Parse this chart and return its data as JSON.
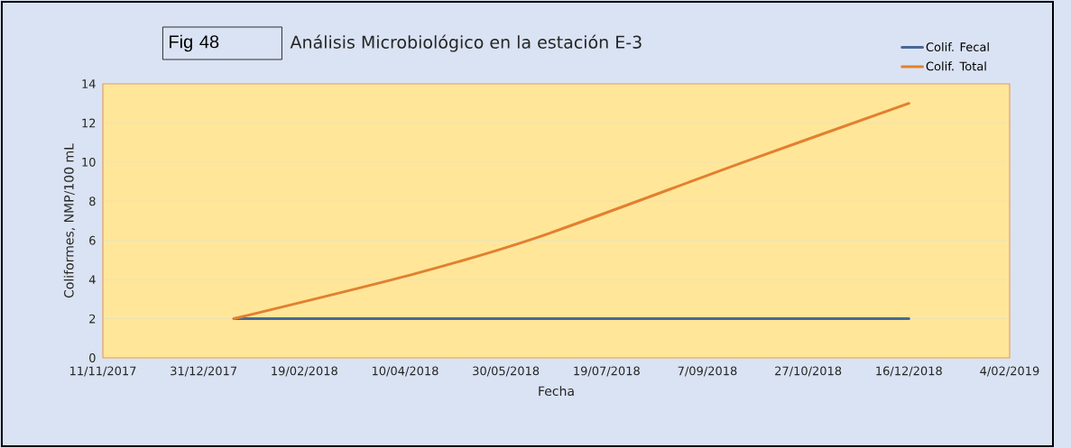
{
  "chart_data": {
    "type": "line",
    "title": "Análisis Microbiológico en la estación E-3",
    "xlabel": "Fecha",
    "ylabel": "Coliformes, NMP/100 mL",
    "annotations": [
      "Fig 48"
    ],
    "series": [
      {
        "name": "Colif. Fecal",
        "color": "#4a6896",
        "x": [
          "2018-01-15",
          "2018-12-16"
        ],
        "values": [
          2,
          2
        ]
      },
      {
        "name": "Colif. Total",
        "color": "#e2802f",
        "x": [
          "2018-01-15",
          "2018-04-15",
          "2018-06-16",
          "2018-09-25",
          "2018-12-16"
        ],
        "values": [
          2,
          4.3,
          6.2,
          10.0,
          13
        ]
      }
    ],
    "xlim": [
      "2017-11-11",
      "2019-02-04"
    ],
    "xticks": [
      {
        "value": "2017-11-11",
        "label": "11/11/2017"
      },
      {
        "value": "2017-12-31",
        "label": "31/12/2017"
      },
      {
        "value": "2018-02-19",
        "label": "19/02/2018"
      },
      {
        "value": "2018-04-10",
        "label": "10/04/2018"
      },
      {
        "value": "2018-05-30",
        "label": "30/05/2018"
      },
      {
        "value": "2018-07-19",
        "label": "19/07/2018"
      },
      {
        "value": "2018-09-07",
        "label": "7/09/2018"
      },
      {
        "value": "2018-10-27",
        "label": "27/10/2018"
      },
      {
        "value": "2018-12-16",
        "label": "16/12/2018"
      },
      {
        "value": "2019-02-04",
        "label": "4/02/2019"
      }
    ],
    "ylim": [
      0,
      14
    ],
    "yticks": [
      0,
      2,
      4,
      6,
      8,
      10,
      12,
      14
    ],
    "grid": "y",
    "legend": "top right",
    "line_style": "solid"
  }
}
